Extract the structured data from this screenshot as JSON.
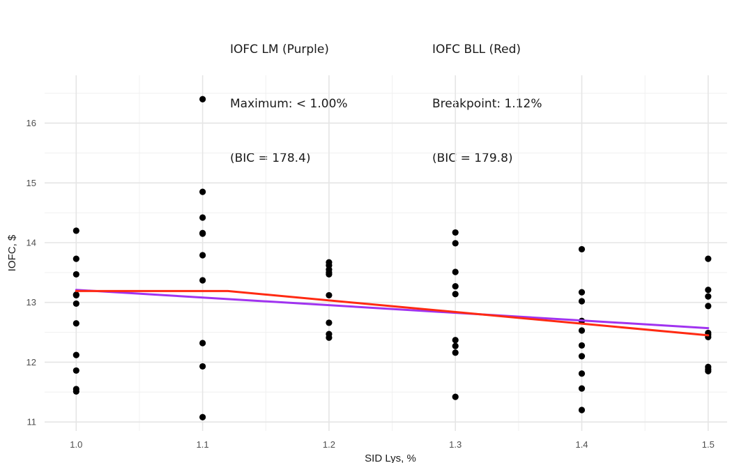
{
  "chart_data": {
    "type": "scatter",
    "xlabel": "SID Lys, %",
    "ylabel": "IOFC, $",
    "xlim": [
      0.975,
      1.515
    ],
    "ylim": [
      10.85,
      16.8
    ],
    "x_ticks": [
      "1.0",
      "1.1",
      "1.2",
      "1.3",
      "1.4",
      "1.5"
    ],
    "x_tick_values": [
      1.0,
      1.1,
      1.2,
      1.3,
      1.4,
      1.5
    ],
    "y_ticks": [
      "11",
      "12",
      "13",
      "14",
      "15",
      "16"
    ],
    "y_tick_values": [
      11,
      12,
      13,
      14,
      15,
      16
    ],
    "grid": true,
    "annotations": [
      {
        "lines": [
          "IOFC LM (Purple)",
          "Maximum: < 1.00%",
          "(BIC = 178.4)"
        ]
      },
      {
        "lines": [
          "IOFC BLL (Red)",
          "Breakpoint: 1.12%",
          "(BIC = 179.8)"
        ]
      }
    ],
    "points": [
      [
        1.0,
        14.2
      ],
      [
        1.0,
        13.73
      ],
      [
        1.0,
        13.47
      ],
      [
        1.0,
        13.13
      ],
      [
        1.0,
        13.12
      ],
      [
        1.0,
        12.98
      ],
      [
        1.0,
        12.65
      ],
      [
        1.0,
        12.12
      ],
      [
        1.0,
        11.86
      ],
      [
        1.0,
        11.55
      ],
      [
        1.0,
        11.51
      ],
      [
        1.1,
        16.4
      ],
      [
        1.1,
        14.85
      ],
      [
        1.1,
        14.42
      ],
      [
        1.1,
        14.16
      ],
      [
        1.1,
        14.15
      ],
      [
        1.1,
        13.79
      ],
      [
        1.1,
        13.37
      ],
      [
        1.1,
        12.32
      ],
      [
        1.1,
        11.93
      ],
      [
        1.1,
        11.08
      ],
      [
        1.2,
        13.67
      ],
      [
        1.2,
        13.62
      ],
      [
        1.2,
        13.55
      ],
      [
        1.2,
        13.5
      ],
      [
        1.2,
        13.47
      ],
      [
        1.2,
        13.12
      ],
      [
        1.2,
        12.66
      ],
      [
        1.2,
        12.47
      ],
      [
        1.2,
        12.41
      ],
      [
        1.3,
        14.17
      ],
      [
        1.3,
        13.99
      ],
      [
        1.3,
        13.51
      ],
      [
        1.3,
        13.27
      ],
      [
        1.3,
        13.14
      ],
      [
        1.3,
        12.37
      ],
      [
        1.3,
        12.27
      ],
      [
        1.3,
        12.16
      ],
      [
        1.3,
        11.42
      ],
      [
        1.4,
        13.89
      ],
      [
        1.4,
        13.17
      ],
      [
        1.4,
        13.02
      ],
      [
        1.4,
        12.69
      ],
      [
        1.4,
        12.53
      ],
      [
        1.4,
        12.28
      ],
      [
        1.4,
        12.1
      ],
      [
        1.4,
        11.81
      ],
      [
        1.4,
        11.56
      ],
      [
        1.4,
        11.2
      ],
      [
        1.5,
        13.73
      ],
      [
        1.5,
        13.21
      ],
      [
        1.5,
        13.1
      ],
      [
        1.5,
        12.94
      ],
      [
        1.5,
        12.49
      ],
      [
        1.5,
        12.46
      ],
      [
        1.5,
        12.42
      ],
      [
        1.5,
        11.92
      ],
      [
        1.5,
        11.88
      ],
      [
        1.5,
        11.85
      ]
    ],
    "point_color": "#000000",
    "series": [
      {
        "x": [
          1.0,
          1.5
        ],
        "y": [
          13.21,
          12.57
        ],
        "color": "#a033f0"
      },
      {
        "x": [
          1.0,
          1.12,
          1.5
        ],
        "y": [
          13.19,
          13.19,
          12.45
        ],
        "color": "#ff2a12"
      }
    ]
  }
}
